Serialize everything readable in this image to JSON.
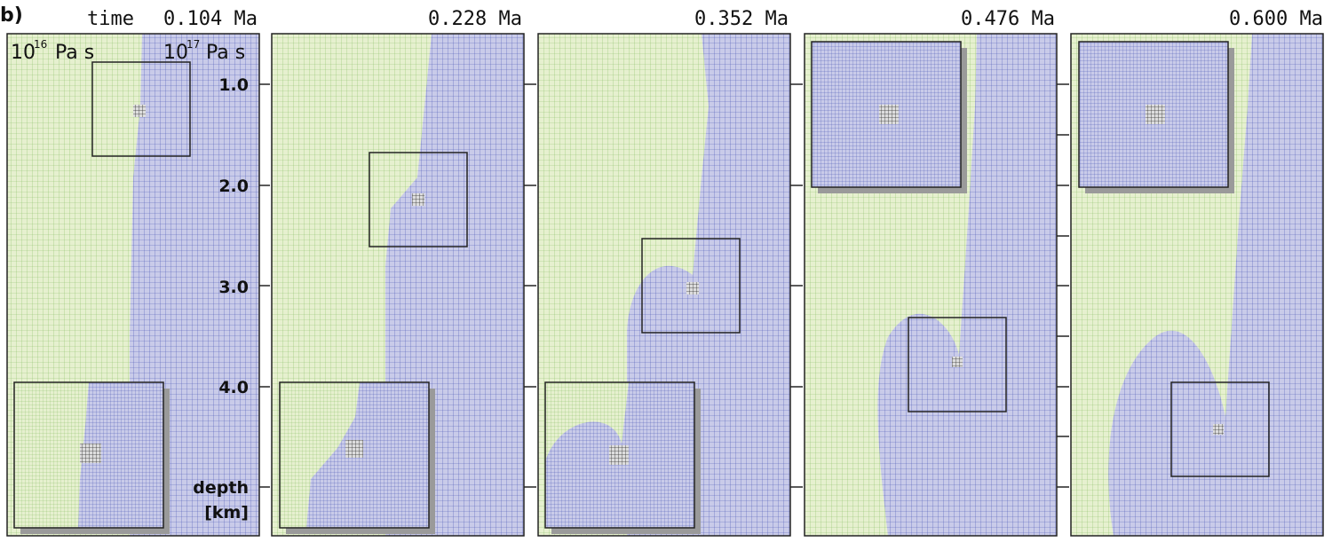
{
  "figure_label": "b)",
  "time_label": "time",
  "times": [
    "0.104 Ma",
    "0.228 Ma",
    "0.352 Ma",
    "0.476 Ma",
    "0.600 Ma"
  ],
  "viscosity_left": {
    "base": "10",
    "exp": "16",
    "unit": "Pa s"
  },
  "viscosity_right": {
    "base": "10",
    "exp": "17",
    "unit": "Pa s"
  },
  "depth_ticks": [
    "1.0",
    "2.0",
    "3.0",
    "4.0"
  ],
  "depth_label": "depth",
  "depth_unit": "[km]",
  "colors": {
    "low_viscosity": "#e6f0cf",
    "low_viscosity_lines": "#8cc06a",
    "high_viscosity": "#c9cbe9",
    "high_viscosity_lines": "#4a57b5",
    "frame": "#222222",
    "inset_shadow": "#9a9a9a"
  }
}
